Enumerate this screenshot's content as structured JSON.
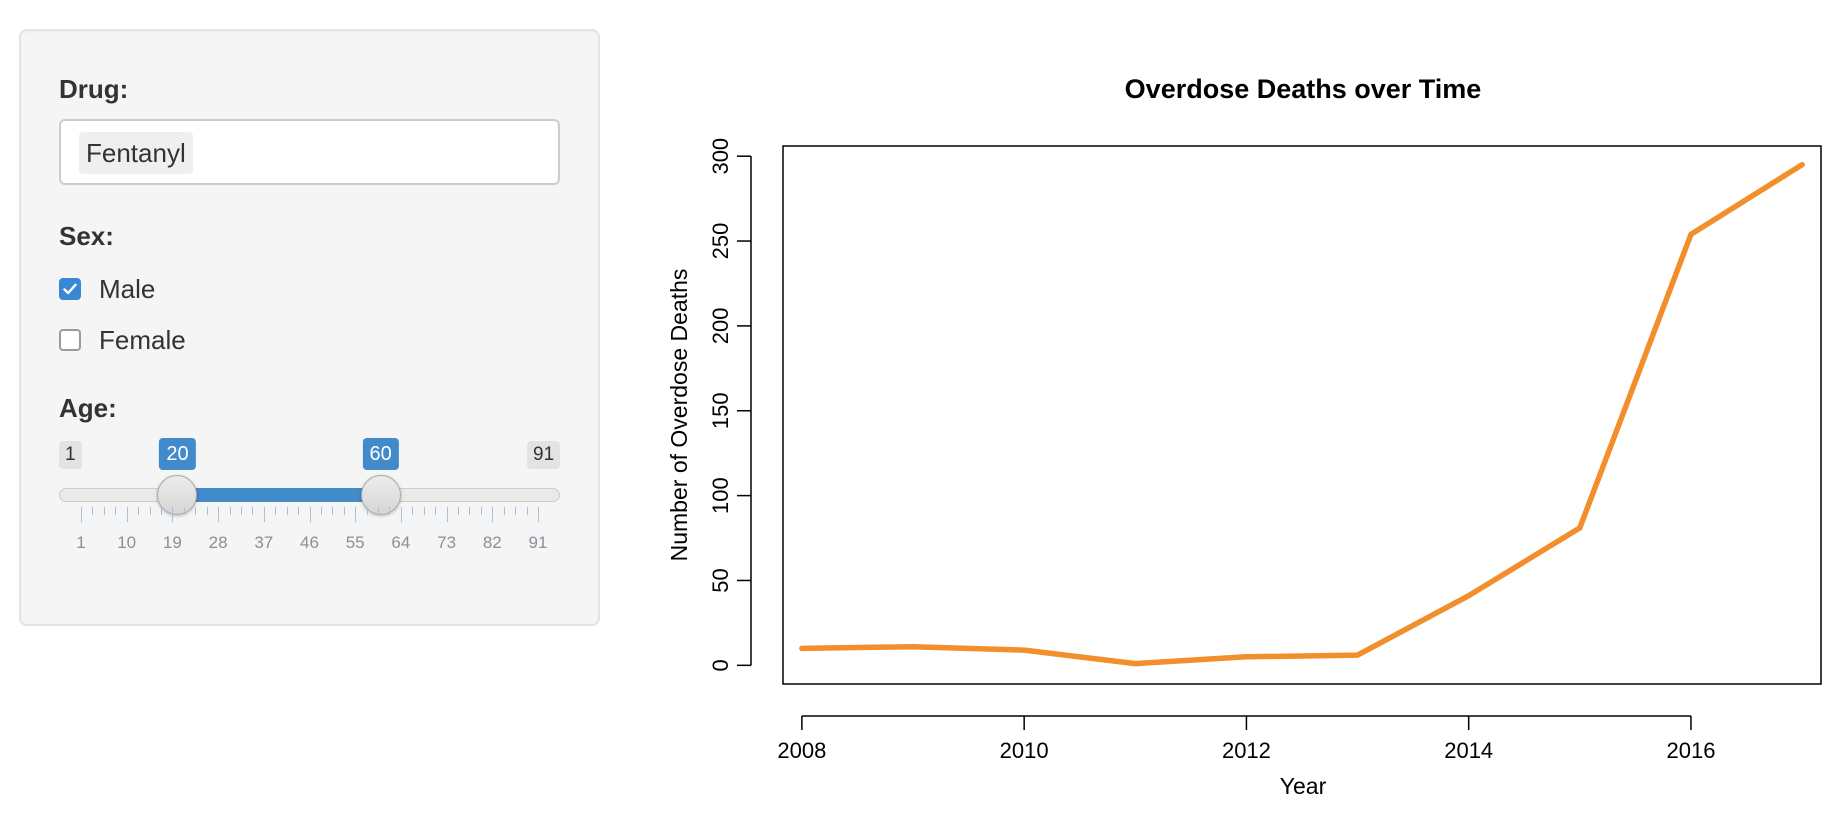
{
  "sidebar": {
    "drug_label": "Drug:",
    "drug_selected": "Fentanyl",
    "sex_label": "Sex:",
    "sex_options": [
      {
        "label": "Male",
        "checked": true
      },
      {
        "label": "Female",
        "checked": false
      }
    ],
    "age_label": "Age:",
    "age_slider": {
      "min": 1,
      "max": 91,
      "min_label": "1",
      "max_label": "91",
      "from": 20,
      "to": 60,
      "from_label": "20",
      "to_label": "60",
      "tick_labels": [
        "1",
        "10",
        "19",
        "28",
        "37",
        "46",
        "55",
        "64",
        "73",
        "82",
        "91"
      ]
    },
    "colors": {
      "accent": "#428bca",
      "checkbox_checked": "#3a87d6",
      "panel_bg": "#f5f5f5"
    }
  },
  "chart_data": {
    "type": "line",
    "title": "Overdose Deaths over Time",
    "xlabel": "Year",
    "ylabel": "Number of Overdose Deaths",
    "x": [
      2008,
      2009,
      2010,
      2011,
      2012,
      2013,
      2014,
      2015,
      2016,
      2017
    ],
    "y": [
      10,
      11,
      9,
      1,
      5,
      6,
      41,
      81,
      254,
      295
    ],
    "xticks": [
      "2008",
      "2010",
      "2012",
      "2014",
      "2016"
    ],
    "yticks": [
      "0",
      "50",
      "100",
      "150",
      "200",
      "250",
      "300"
    ],
    "xlim": [
      2007.83,
      2017.17
    ],
    "ylim": [
      -11,
      306
    ],
    "line_color": "#f28e2b",
    "grid": false,
    "legend": "none"
  }
}
